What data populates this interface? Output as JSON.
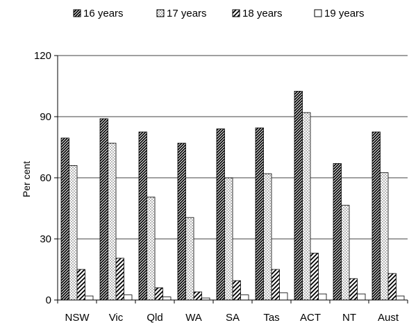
{
  "chart_data": {
    "type": "bar",
    "categories": [
      "NSW",
      "Vic",
      "Qld",
      "WA",
      "SA",
      "Tas",
      "ACT",
      "NT",
      "Aust"
    ],
    "series": [
      {
        "name": "16 years",
        "values": [
          79.5,
          89,
          82.5,
          77,
          84,
          84.5,
          102.5,
          67,
          82.5
        ],
        "pattern": "diagonal-dense"
      },
      {
        "name": "17 years",
        "values": [
          66,
          77,
          50.5,
          40.5,
          60,
          62,
          92,
          46.5,
          62.5
        ],
        "pattern": "dotted"
      },
      {
        "name": "18 years",
        "values": [
          15,
          20.5,
          6,
          4,
          9.5,
          15,
          23,
          10.5,
          13
        ],
        "pattern": "diagonal-wide"
      },
      {
        "name": "19 years",
        "values": [
          2,
          2.5,
          1.5,
          1,
          2.5,
          3.5,
          3,
          3,
          2
        ],
        "pattern": "plain"
      }
    ],
    "title": "",
    "xlabel": "",
    "ylabel": "Per cent",
    "ylim": [
      0,
      120
    ],
    "yticks": [
      "0",
      "30",
      "60",
      "90",
      "120"
    ],
    "grid": true,
    "legend_position": "top"
  }
}
